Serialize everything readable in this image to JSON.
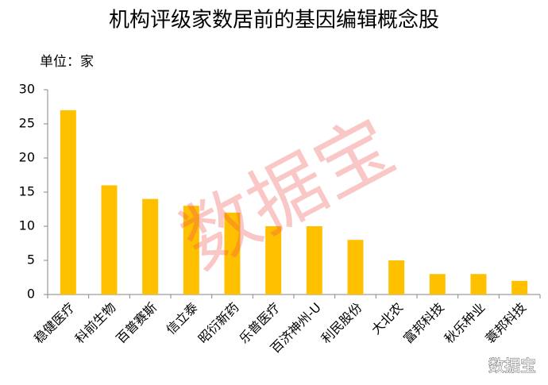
{
  "chart_data": {
    "type": "bar",
    "title": "机构评级家数居前的基因编辑概念股",
    "subtitle": "单位：家",
    "categories": [
      "稳健医疗",
      "科前生物",
      "百普赛斯",
      "信立泰",
      "昭衍新药",
      "乐普医疗",
      "百济神州-U",
      "利民股份",
      "大北农",
      "富邦科技",
      "秋乐种业",
      "蓑邦科技"
    ],
    "values": [
      27,
      16,
      14,
      13,
      12,
      10,
      10,
      8,
      5,
      3,
      3,
      2
    ],
    "color": "#ffc000",
    "ylim": [
      0,
      30
    ],
    "yticks": [
      0,
      5,
      10,
      15,
      20,
      25,
      30
    ],
    "grid": false,
    "watermark": "数据宝",
    "logo": "数据宝"
  }
}
